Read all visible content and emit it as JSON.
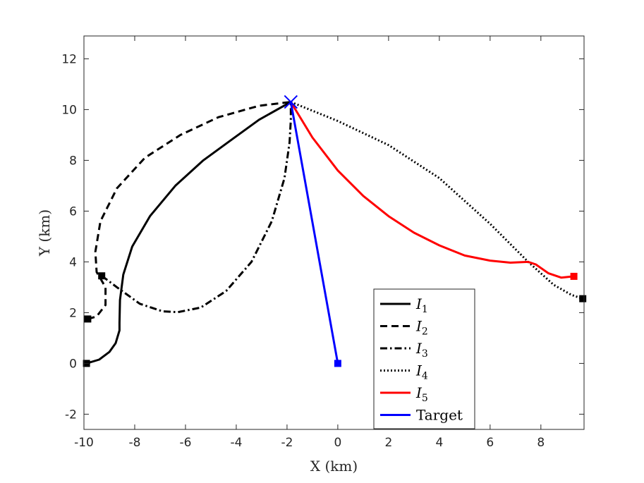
{
  "chart_data": {
    "type": "line",
    "xlabel": "X (km)",
    "ylabel": "Y (km)",
    "xlim": [
      -10,
      9.7
    ],
    "ylim": [
      -2.6,
      12.9
    ],
    "xticks": [
      -10,
      -8,
      -6,
      -4,
      -2,
      0,
      2,
      4,
      6,
      8
    ],
    "yticks": [
      -2,
      0,
      2,
      4,
      6,
      8,
      10,
      12
    ],
    "grid": false,
    "legend_position": "lower-right",
    "meeting_point": {
      "x": -1.85,
      "y": 10.3,
      "marker": "x",
      "color": "#0000ff"
    },
    "series": [
      {
        "name": "I",
        "subscript": "1",
        "color": "#000000",
        "dash": "solid",
        "points": [
          [
            -9.9,
            0.0
          ],
          [
            -9.4,
            0.15
          ],
          [
            -9.0,
            0.45
          ],
          [
            -8.75,
            0.8
          ],
          [
            -8.6,
            1.3
          ],
          [
            -8.6,
            1.6
          ],
          [
            -8.58,
            2.5
          ],
          [
            -8.45,
            3.5
          ],
          [
            -8.1,
            4.6
          ],
          [
            -7.4,
            5.8
          ],
          [
            -6.4,
            7.0
          ],
          [
            -5.3,
            8.0
          ],
          [
            -4.2,
            8.8
          ],
          [
            -3.1,
            9.6
          ],
          [
            -1.85,
            10.3
          ]
        ],
        "start": [
          -9.9,
          0.0
        ]
      },
      {
        "name": "I",
        "subscript": "2",
        "color": "#000000",
        "dash": "dashed",
        "points": [
          [
            -9.85,
            1.75
          ],
          [
            -9.5,
            1.85
          ],
          [
            -9.15,
            2.3
          ],
          [
            -9.15,
            3.0
          ],
          [
            -9.5,
            3.6
          ],
          [
            -9.55,
            4.4
          ],
          [
            -9.35,
            5.6
          ],
          [
            -8.7,
            6.9
          ],
          [
            -7.6,
            8.1
          ],
          [
            -6.2,
            9.0
          ],
          [
            -4.7,
            9.7
          ],
          [
            -3.1,
            10.15
          ],
          [
            -1.85,
            10.3
          ]
        ],
        "start": [
          -9.85,
          1.75
        ]
      },
      {
        "name": "I",
        "subscript": "3",
        "color": "#000000",
        "dash": "dashdot",
        "points": [
          [
            -9.3,
            3.45
          ],
          [
            -8.7,
            3.0
          ],
          [
            -7.8,
            2.35
          ],
          [
            -6.9,
            2.05
          ],
          [
            -6.3,
            2.02
          ],
          [
            -5.4,
            2.2
          ],
          [
            -4.4,
            2.85
          ],
          [
            -3.4,
            4.0
          ],
          [
            -2.6,
            5.6
          ],
          [
            -2.1,
            7.3
          ],
          [
            -1.9,
            8.7
          ],
          [
            -1.85,
            9.6
          ],
          [
            -1.85,
            10.3
          ]
        ],
        "start": [
          -9.3,
          3.45
        ]
      },
      {
        "name": "I",
        "subscript": "4",
        "color": "#000000",
        "dash": "dotted",
        "points": [
          [
            -1.85,
            10.3
          ],
          [
            0.0,
            9.55
          ],
          [
            2.0,
            8.6
          ],
          [
            4.0,
            7.3
          ],
          [
            6.0,
            5.5
          ],
          [
            7.5,
            4.0
          ],
          [
            8.5,
            3.1
          ],
          [
            9.2,
            2.7
          ],
          [
            9.65,
            2.55
          ]
        ],
        "start": [
          9.65,
          2.55
        ]
      },
      {
        "name": "I",
        "subscript": "5",
        "color": "#ff0000",
        "dash": "solid",
        "points": [
          [
            -1.85,
            10.3
          ],
          [
            -1.0,
            8.9
          ],
          [
            0.0,
            7.6
          ],
          [
            1.0,
            6.6
          ],
          [
            2.0,
            5.8
          ],
          [
            3.0,
            5.15
          ],
          [
            4.0,
            4.65
          ],
          [
            5.0,
            4.25
          ],
          [
            6.0,
            4.05
          ],
          [
            6.8,
            3.97
          ],
          [
            7.5,
            4.0
          ],
          [
            7.8,
            3.9
          ],
          [
            8.3,
            3.55
          ],
          [
            8.8,
            3.38
          ],
          [
            9.3,
            3.43
          ]
        ],
        "start": [
          9.3,
          3.43
        ]
      },
      {
        "name": "Target",
        "subscript": "",
        "color": "#0000ff",
        "dash": "solid",
        "points": [
          [
            -1.85,
            10.3
          ],
          [
            0.0,
            0.0
          ]
        ],
        "start": [
          0.0,
          0.0
        ]
      }
    ]
  }
}
